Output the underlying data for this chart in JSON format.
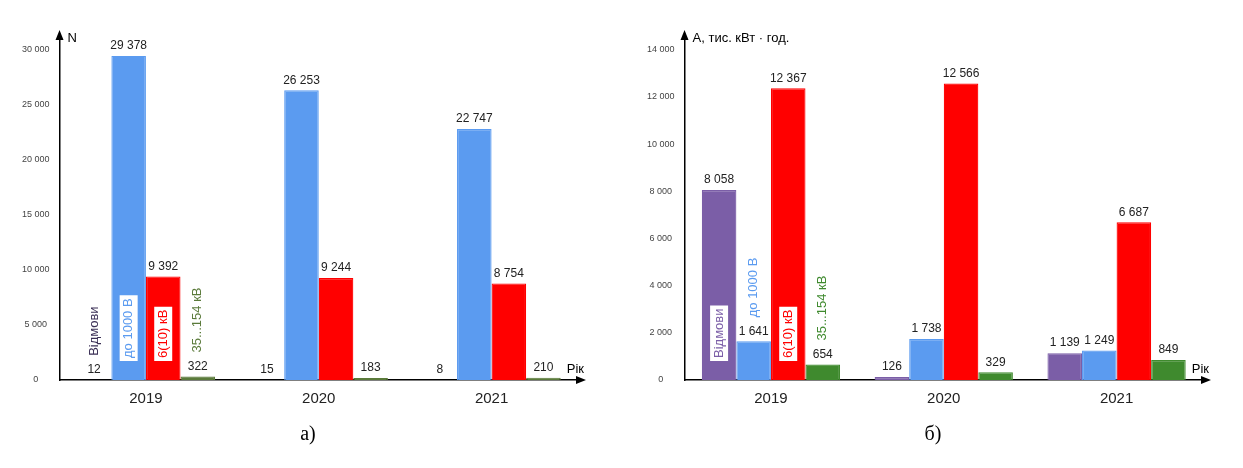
{
  "chart_data": [
    {
      "type": "bar",
      "ylabel": "N",
      "xlabel": "Рік",
      "categories": [
        "2019",
        "2020",
        "2021"
      ],
      "ylim": [
        0,
        31000
      ],
      "yticks": [
        0,
        {
          "value": 5000,
          "label": "5 000"
        },
        {
          "value": 10000,
          "label": "10 000"
        },
        {
          "value": 15000,
          "label": "15 000"
        },
        {
          "value": 20000,
          "label": "20 000"
        },
        {
          "value": 25000,
          "label": "25 000"
        },
        {
          "value": 30000,
          "label": "30 000"
        }
      ],
      "grid": false,
      "legend": false,
      "annotations": [
        "а)"
      ],
      "series": [
        {
          "name": "Відмови",
          "color": "#3a2f55",
          "values": [
            12,
            15,
            8
          ],
          "value_labels": [
            "12",
            "15",
            "8"
          ]
        },
        {
          "name": "до 1000 В",
          "color": "#5b9bf0",
          "values": [
            29378,
            26253,
            22747
          ],
          "value_labels": [
            "29 378",
            "26 253",
            "22 747"
          ]
        },
        {
          "name": "6(10) кВ",
          "color": "#ff0000",
          "values": [
            9392,
            9244,
            8754
          ],
          "value_labels": [
            "9 392",
            "9 244",
            "8 754"
          ]
        },
        {
          "name": "35...154 кВ",
          "color": "#5a7a3a",
          "values": [
            322,
            183,
            210
          ],
          "value_labels": [
            "322",
            "183",
            "210"
          ]
        }
      ]
    },
    {
      "type": "bar",
      "ylabel": "А, тис. кВт · год.",
      "xlabel": "Рік",
      "categories": [
        "2019",
        "2020",
        "2021"
      ],
      "ylim": [
        0,
        14500
      ],
      "yticks": [
        0,
        {
          "value": 2000,
          "label": "2 000"
        },
        {
          "value": 4000,
          "label": "4 000"
        },
        {
          "value": 6000,
          "label": "6 000"
        },
        {
          "value": 8000,
          "label": "8 000"
        },
        {
          "value": 10000,
          "label": "10 000"
        },
        {
          "value": 12000,
          "label": "12 000"
        },
        {
          "value": 14000,
          "label": "14 000"
        }
      ],
      "grid": false,
      "legend": false,
      "annotations": [
        "б)"
      ],
      "series": [
        {
          "name": "Відмови",
          "color": "#7b5ea7",
          "values": [
            8058,
            126,
            1139
          ],
          "value_labels": [
            "8 058",
            "126",
            "1 139"
          ]
        },
        {
          "name": "до 1000 В",
          "color": "#5b9bf0",
          "values": [
            1641,
            1738,
            1249
          ],
          "value_labels": [
            "1 641",
            "1 738",
            "1 249"
          ]
        },
        {
          "name": "6(10) кВ",
          "color": "#ff0000",
          "values": [
            12367,
            12566,
            6687
          ],
          "value_labels": [
            "12 367",
            "12 566",
            "6 687"
          ]
        },
        {
          "name": "35...154 кВ",
          "color": "#3f8a2e",
          "values": [
            654,
            329,
            849
          ],
          "value_labels": [
            "654",
            "329",
            "849"
          ]
        }
      ]
    }
  ]
}
